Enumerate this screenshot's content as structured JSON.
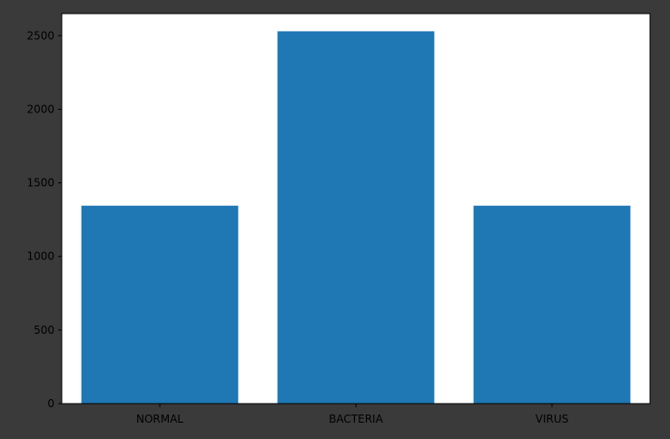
{
  "chart_data": {
    "type": "bar",
    "categories": [
      "NORMAL",
      "BACTERIA",
      "VIRUS"
    ],
    "values": [
      1345,
      2530,
      1345
    ],
    "ylim": [
      0,
      2650
    ],
    "yticks": [
      0,
      500,
      1000,
      1500,
      2000,
      2500
    ],
    "title": "",
    "xlabel": "",
    "ylabel": "",
    "grid": false,
    "colors": {
      "bar": "#1f77b4",
      "background": "#3a3a3a",
      "plot_background": "#ffffff",
      "axis": "#000000",
      "text": "#000000"
    }
  }
}
